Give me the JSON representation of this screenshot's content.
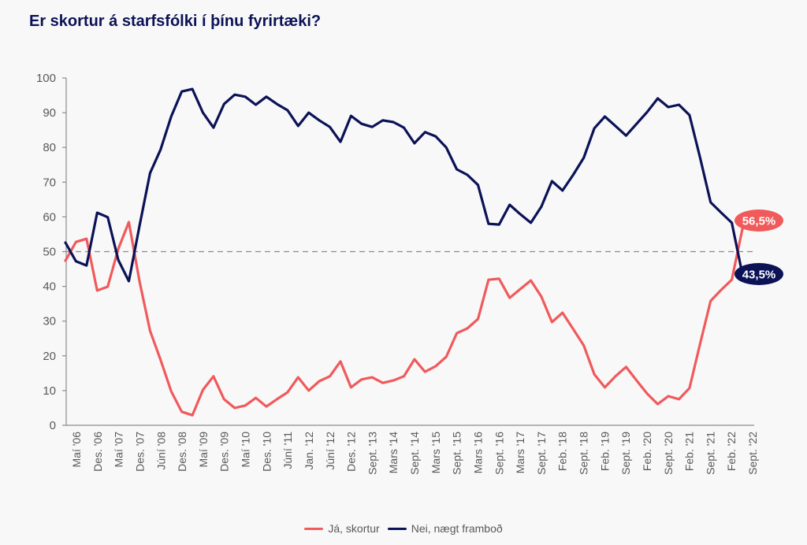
{
  "title": "Er skortur á starfsfólki í þínu fyrirtæki?",
  "chart_data": {
    "type": "line",
    "title": "Er skortur á starfsfólki í þínu fyrirtæki?",
    "xlabel": "",
    "ylabel": "",
    "ylim": [
      0,
      100
    ],
    "yticks": [
      0,
      10,
      20,
      30,
      40,
      50,
      60,
      70,
      80,
      90,
      100
    ],
    "reference_line": {
      "value": 50,
      "style": "dashed"
    },
    "grid": false,
    "legend_position": "bottom-center",
    "xtick_labels": [
      "Maí '06",
      "Des. '06",
      "Maí '07",
      "Des. '07",
      "Júní '08",
      "Des. '08",
      "Maí '09",
      "Des. '09",
      "Maí '10",
      "Des. '10",
      "Júní '11",
      "Jan. '12",
      "Júní '12",
      "Des. '12",
      "Sept. '13",
      "Mars '14",
      "Sept. '14",
      "Mars '15",
      "Sept. '15",
      "Mars '16",
      "Sept. '16",
      "Mars '17",
      "Sept. '17",
      "Feb. '18",
      "Sept. '18",
      "Feb. '19",
      "Sept. '19",
      "Feb. '20",
      "Sept. '20",
      "Feb. '21",
      "Sept. '21",
      "Feb. '22",
      "Sept. '22"
    ],
    "series": [
      {
        "name": "Já, skortur",
        "color": "#f05a5b",
        "end_label": "56,5%",
        "values": [
          47.4,
          52.8,
          53.7,
          38.8,
          39.9,
          50.8,
          58.5,
          41.5,
          27.2,
          18.8,
          9.8,
          3.9,
          2.9,
          10.2,
          14.1,
          7.5,
          5.0,
          5.7,
          7.9,
          5.4,
          7.5,
          9.5,
          13.8,
          10.0,
          12.7,
          14.1,
          18.4,
          10.9,
          13.2,
          13.8,
          12.2,
          12.9,
          14.1,
          19.0,
          15.4,
          17.0,
          19.7,
          26.5,
          27.9,
          30.6,
          41.9,
          42.2,
          36.7,
          39.2,
          41.7,
          37.0,
          29.7,
          32.4,
          27.7,
          23.0,
          14.7,
          10.9,
          14.1,
          16.8,
          12.9,
          9.1,
          6.1,
          8.4,
          7.5,
          10.7,
          23.4,
          35.8,
          39.0,
          41.9,
          56.5
        ]
      },
      {
        "name": "Nei, nægt framboð",
        "color": "#0b1256",
        "end_label": "43,5%",
        "values": [
          52.6,
          47.2,
          46.0,
          61.2,
          59.9,
          47.6,
          41.5,
          57.4,
          72.6,
          79.4,
          88.9,
          96.1,
          96.8,
          90.0,
          85.7,
          92.5,
          95.2,
          94.6,
          92.3,
          94.6,
          92.5,
          90.7,
          86.2,
          90.0,
          87.8,
          85.9,
          81.6,
          89.1,
          86.8,
          85.9,
          87.8,
          87.3,
          85.7,
          81.2,
          84.4,
          83.2,
          80.0,
          73.7,
          72.1,
          69.2,
          58.0,
          57.8,
          63.5,
          60.8,
          58.3,
          63.0,
          70.3,
          67.6,
          72.1,
          77.0,
          85.5,
          88.9,
          86.2,
          83.4,
          86.8,
          90.2,
          94.1,
          91.6,
          92.3,
          89.3,
          77.1,
          64.2,
          61.2,
          58.3,
          43.5
        ]
      }
    ]
  },
  "legend": [
    {
      "label": "Já, skortur",
      "color": "#f05a5b"
    },
    {
      "label": "Nei, nægt framboð",
      "color": "#0b1256"
    }
  ]
}
